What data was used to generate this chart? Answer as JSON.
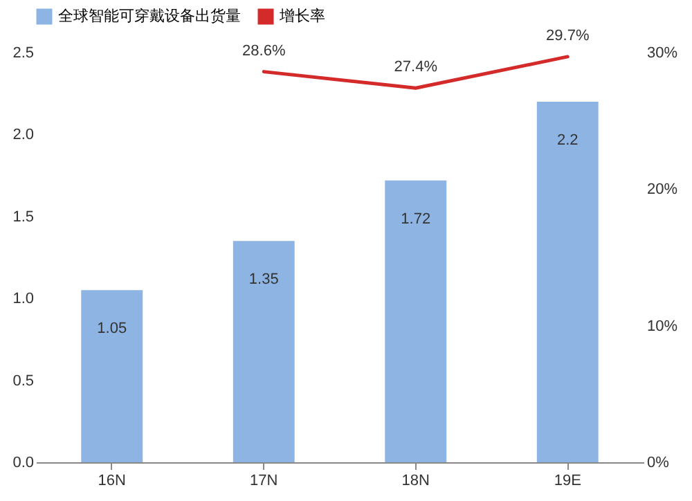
{
  "chart_data": {
    "type": "bar",
    "categories": [
      "16N",
      "17N",
      "18N",
      "19E"
    ],
    "series": [
      {
        "name": "全球智能可穿戴设备出货量",
        "color": "#8eb4e3",
        "values": [
          1.05,
          1.35,
          1.72,
          2.2
        ],
        "value_labels": [
          "1.05",
          "1.35",
          "1.72",
          "2.2"
        ]
      },
      {
        "name": "增长率",
        "type": "line",
        "axis": "y2",
        "color": "#d42a2a",
        "values": [
          null,
          28.6,
          27.4,
          29.7
        ],
        "value_labels": [
          null,
          "28.6%",
          "27.4%",
          "29.7%"
        ]
      }
    ],
    "ylim": [
      0,
      2.5
    ],
    "yticks": [
      {
        "value": 0,
        "label": "0.0"
      },
      0.5,
      {
        "value": 1,
        "label": "1.0"
      },
      1.5,
      {
        "value": 2,
        "label": "2.0"
      },
      2.5
    ],
    "y2lim": [
      0,
      30
    ],
    "y2ticks": [
      {
        "value": 0,
        "label": "0%"
      },
      {
        "value": 10,
        "label": "10%"
      },
      {
        "value": 20,
        "label": "20%"
      },
      {
        "value": 30,
        "label": "30%"
      }
    ],
    "legend": "top",
    "grid": false
  }
}
